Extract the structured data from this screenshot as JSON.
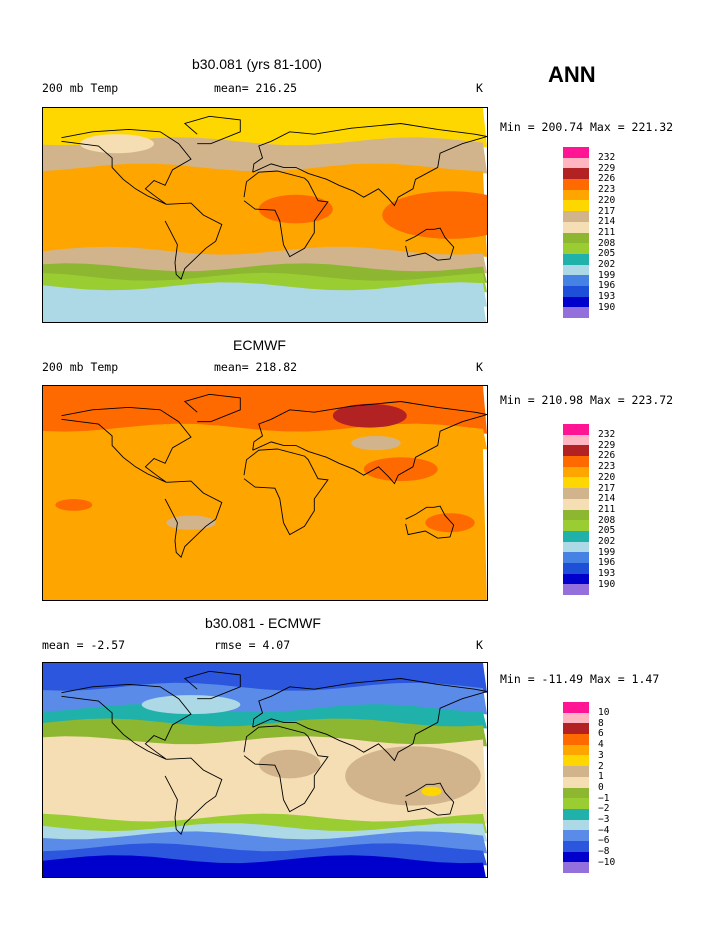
{
  "season": "ANN",
  "colors": {
    "abs": [
      "#9370DB",
      "#0000CD",
      "#1E4FD8",
      "#4682E4",
      "#ADD8E6",
      "#20B2AA",
      "#9ACD32",
      "#8DB631",
      "#F5DEB3",
      "#D2B48C",
      "#FFD700",
      "#FFA500",
      "#FF6A00",
      "#B22222",
      "#FFB6C1",
      "#FF1493"
    ],
    "diff": [
      "#9370DB",
      "#0000CD",
      "#2B56DD",
      "#5B8BE8",
      "#ADD8E6",
      "#20B2AA",
      "#9ACD32",
      "#8DB631",
      "#F5DEB3",
      "#D2B48C",
      "#FFD700",
      "#FFA500",
      "#FF6A00",
      "#B22222",
      "#FFB6C1",
      "#FF1493"
    ]
  },
  "panels": [
    {
      "title": "b30.081 (yrs 81-100)",
      "left": "200 mb Temp",
      "center": "mean= 216.25",
      "unit": "K",
      "minmax": "Min = 200.74 Max = 221.32",
      "scale": "abs",
      "levels": [
        "232",
        "229",
        "226",
        "223",
        "220",
        "217",
        "214",
        "211",
        "208",
        "205",
        "202",
        "199",
        "196",
        "193",
        "190"
      ],
      "bands": [
        {
          "lat": 90,
          "level": 217
        },
        {
          "lat": 62,
          "level": 214
        },
        {
          "lat": 40,
          "level": 220
        },
        {
          "lat": -30,
          "level": 214
        },
        {
          "lat": -44,
          "level": 208
        },
        {
          "lat": -52,
          "level": 205
        },
        {
          "lat": -60,
          "level": 199
        },
        {
          "lat": -72,
          "level": 199
        }
      ],
      "blobs": [
        {
          "lon": 150,
          "lat": 0,
          "rlon": 55,
          "rlat": 20,
          "level": 223
        },
        {
          "lon": 25,
          "lat": 5,
          "rlon": 30,
          "rlat": 12,
          "level": 223
        },
        {
          "lon": -120,
          "lat": 60,
          "rlon": 30,
          "rlat": 8,
          "level": 211
        }
      ]
    },
    {
      "title": "ECMWF",
      "left": "200 mb Temp",
      "center": "mean= 218.82",
      "unit": "K",
      "minmax": "Min = 210.98 Max = 223.72",
      "scale": "abs",
      "levels": [
        "232",
        "229",
        "226",
        "223",
        "220",
        "217",
        "214",
        "211",
        "208",
        "205",
        "202",
        "199",
        "196",
        "193",
        "190"
      ],
      "bands": [
        {
          "lat": 90,
          "level": 223
        },
        {
          "lat": 55,
          "level": 220
        },
        {
          "lat": 42,
          "level": 220
        },
        {
          "lat": -90,
          "level": 220
        }
      ],
      "blobs": [
        {
          "lon": 85,
          "lat": 65,
          "rlon": 30,
          "rlat": 10,
          "level": 226
        },
        {
          "lon": 110,
          "lat": 20,
          "rlon": 30,
          "rlat": 10,
          "level": 223
        },
        {
          "lon": 150,
          "lat": -25,
          "rlon": 20,
          "rlat": 8,
          "level": 223
        },
        {
          "lon": -155,
          "lat": -10,
          "rlon": 15,
          "rlat": 5,
          "level": 223
        },
        {
          "lon": 90,
          "lat": 42,
          "rlon": 20,
          "rlat": 6,
          "level": 214
        },
        {
          "lon": -60,
          "lat": -25,
          "rlon": 20,
          "rlat": 6,
          "level": 214
        }
      ]
    },
    {
      "title": "b30.081 - ECMWF",
      "left": "mean =   -2.57",
      "center": "rmse =   4.07",
      "unit": "K",
      "minmax": "Min = -11.49 Max =   1.47",
      "scale": "diff",
      "levels": [
        "10",
        "8",
        "6",
        "4",
        "3",
        "2",
        "1",
        "0",
        "−1",
        "−2",
        "−3",
        "−4",
        "−6",
        "−8",
        "−10"
      ],
      "bands": [
        {
          "lat": 90,
          "level": -8
        },
        {
          "lat": 70,
          "level": -6
        },
        {
          "lat": 52,
          "level": -3
        },
        {
          "lat": 40,
          "level": -1
        },
        {
          "lat": 25,
          "level": 0
        },
        {
          "lat": -40,
          "level": -2
        },
        {
          "lat": -48,
          "level": -4
        },
        {
          "lat": -55,
          "level": -6
        },
        {
          "lat": -65,
          "level": -8
        },
        {
          "lat": -75,
          "level": -10
        }
      ],
      "blobs": [
        {
          "lon": 120,
          "lat": -5,
          "rlon": 55,
          "rlat": 25,
          "level": 1
        },
        {
          "lon": 20,
          "lat": 5,
          "rlon": 25,
          "rlat": 12,
          "level": 1
        },
        {
          "lon": -60,
          "lat": 55,
          "rlon": 40,
          "rlat": 8,
          "level": -4
        },
        {
          "lon": 135,
          "lat": -18,
          "rlon": 8,
          "rlat": 4,
          "level": 2
        }
      ]
    }
  ]
}
